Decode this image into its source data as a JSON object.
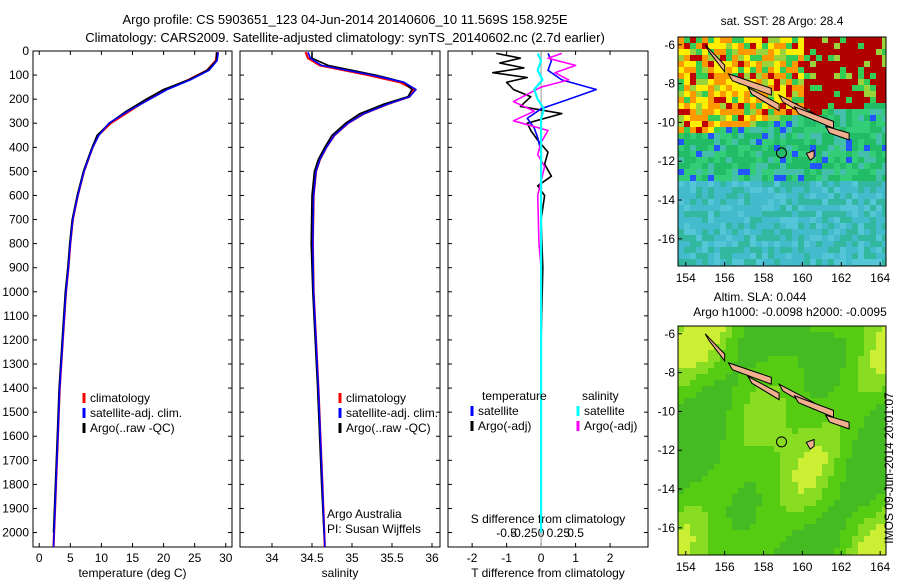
{
  "title_line1": "Argo profile: CS 5903651_123 04-Jun-2014 20140606_10 11.569S 158.925E",
  "title_line2": "Climatology: CARS2009. Satellite-adjusted climatology: synTS_20140602.nc (2.7d earlier)",
  "colors": {
    "clim": "#ff0000",
    "sat": "#0000ff",
    "argo": "#000000",
    "sal_sat": "#00ffff",
    "sal_argo": "#ff00ff"
  },
  "depth_axis": {
    "ticks": [
      0,
      100,
      200,
      300,
      400,
      500,
      600,
      700,
      800,
      900,
      1000,
      1100,
      1200,
      1300,
      1400,
      1500,
      1600,
      1700,
      1800,
      1900,
      2000
    ],
    "labels": [
      "0",
      "100",
      "200",
      "300",
      "400",
      "500",
      "600",
      "700",
      "800",
      "900",
      "1000",
      "1100",
      "1200",
      "1300",
      "1400",
      "1500",
      "1600",
      "1700",
      "1800",
      "1900",
      "2000"
    ],
    "range": [
      0,
      2060
    ]
  },
  "chart_data": [
    {
      "type": "line",
      "name": "temperature",
      "xlabel": "temperature (deg C)",
      "xlim": [
        -1,
        31
      ],
      "xticks": [
        0,
        5,
        10,
        15,
        20,
        25,
        30
      ],
      "xtick_labels": [
        "0",
        "5",
        "10",
        "15",
        "20",
        "25",
        "30"
      ],
      "legend": [
        "climatology",
        "satellite-adj. clim.",
        "Argo(..raw -QC)"
      ],
      "series": [
        {
          "name": "climatology",
          "depth": [
            5,
            40,
            80,
            120,
            160,
            200,
            250,
            300,
            350,
            400,
            450,
            500,
            600,
            700,
            800,
            900,
            1000,
            1200,
            1400,
            1600,
            1800,
            2000,
            2060
          ],
          "values": [
            28.6,
            28.4,
            27.0,
            24.0,
            20.4,
            17.5,
            14.5,
            11.5,
            9.5,
            8.6,
            7.9,
            7.2,
            6.2,
            5.4,
            5.0,
            4.7,
            4.3,
            3.8,
            3.3,
            3.0,
            2.7,
            2.4,
            2.3
          ]
        },
        {
          "name": "satellite-adj. clim.",
          "depth": [
            5,
            40,
            80,
            120,
            160,
            200,
            250,
            300,
            350,
            400,
            450,
            500,
            600,
            700,
            800,
            900,
            1000,
            1200,
            1400,
            1600,
            1800,
            2000,
            2060
          ],
          "values": [
            28.8,
            28.6,
            27.3,
            24.3,
            20.6,
            17.8,
            14.3,
            11.2,
            9.6,
            8.6,
            7.9,
            7.2,
            6.2,
            5.4,
            5.0,
            4.7,
            4.3,
            3.8,
            3.3,
            3.0,
            2.7,
            2.4,
            2.3
          ]
        },
        {
          "name": "Argo(..raw -QC)",
          "depth": [
            5,
            40,
            80,
            120,
            160,
            200,
            250,
            300,
            350,
            400,
            450,
            500,
            600,
            700,
            800,
            900,
            1000,
            1200,
            1400,
            1600,
            1800,
            2000
          ],
          "values": [
            28.5,
            28.5,
            27.0,
            24.0,
            20.0,
            17.2,
            14.0,
            11.3,
            9.3,
            8.5,
            7.8,
            7.1,
            6.1,
            5.3,
            4.9,
            4.6,
            4.2,
            3.7,
            3.2,
            2.9,
            2.6,
            2.3
          ]
        }
      ]
    },
    {
      "type": "line",
      "name": "salinity",
      "xlabel": "salinity",
      "xlim": [
        33.6,
        36.1
      ],
      "xticks": [
        34,
        34.5,
        35,
        35.5,
        36
      ],
      "xtick_labels": [
        "34",
        "34.5",
        "35",
        "35.5",
        "36"
      ],
      "legend": [
        "climatology",
        "satellite-adj. clim.",
        "Argo(..raw -QC)"
      ],
      "annotation": [
        "Argo Australia",
        "PI: Susan Wijffels"
      ],
      "series": [
        {
          "name": "climatology",
          "depth": [
            5,
            30,
            60,
            100,
            130,
            160,
            190,
            220,
            260,
            300,
            350,
            400,
            450,
            500,
            600,
            800,
            1000,
            1400,
            1800,
            2060
          ],
          "values": [
            34.42,
            34.45,
            34.6,
            35.2,
            35.6,
            35.78,
            35.72,
            35.45,
            35.15,
            34.95,
            34.78,
            34.68,
            34.6,
            34.55,
            34.52,
            34.51,
            34.52,
            34.58,
            34.63,
            34.66
          ]
        },
        {
          "name": "satellite-adj. clim.",
          "depth": [
            5,
            30,
            60,
            100,
            130,
            160,
            190,
            220,
            260,
            300,
            350,
            400,
            450,
            500,
            600,
            800,
            1000,
            1400,
            1800,
            2060
          ],
          "values": [
            34.45,
            34.48,
            34.62,
            35.25,
            35.65,
            35.8,
            35.72,
            35.45,
            35.15,
            34.95,
            34.78,
            34.68,
            34.6,
            34.55,
            34.52,
            34.51,
            34.52,
            34.58,
            34.63,
            34.66
          ]
        },
        {
          "name": "Argo(..raw -QC)",
          "depth": [
            5,
            30,
            60,
            100,
            130,
            160,
            190,
            220,
            260,
            300,
            350,
            400,
            450,
            500,
            600,
            800,
            1000,
            1400,
            1800,
            2000
          ],
          "values": [
            34.5,
            34.5,
            34.7,
            35.3,
            35.65,
            35.75,
            35.7,
            35.4,
            35.1,
            34.92,
            34.75,
            34.66,
            34.58,
            34.53,
            34.5,
            34.49,
            34.51,
            34.57,
            34.62,
            34.65
          ]
        }
      ]
    },
    {
      "type": "line",
      "name": "differences",
      "xlabel": "T difference from climatology",
      "xlabel_top": "S difference from climatology",
      "xlim": [
        -2.7,
        3.1
      ],
      "xticks": [
        -2,
        -1,
        0,
        1,
        2
      ],
      "xtick_labels": [
        "-2",
        "-1",
        "0",
        "1",
        "2"
      ],
      "sticks": [
        -0.5,
        -0.25,
        0,
        0.25,
        0.5
      ],
      "stick_labels": [
        "-0.5",
        "-0.25",
        "0",
        "0.25",
        "0.5"
      ],
      "legend_left_title": "temperature",
      "legend_right_title": "salinity",
      "legend_left": [
        "satellite",
        "Argo(-adj)"
      ],
      "legend_right": [
        "satellite",
        "Argo(-adj)"
      ],
      "series": [
        {
          "name": "T satellite",
          "depth": [
            10,
            40,
            80,
            120,
            160,
            200,
            240,
            280,
            320,
            360,
            420,
            500,
            600,
            800,
            1000,
            1400,
            2000
          ],
          "values": [
            0.2,
            0.3,
            0.2,
            0.6,
            1.6,
            0.8,
            0.0,
            -0.4,
            -0.2,
            -0.1,
            0.0,
            0.0,
            0.0,
            0.0,
            0.0,
            0.0,
            0.0
          ]
        },
        {
          "name": "T Argo(-adj)",
          "depth": [
            10,
            30,
            50,
            70,
            90,
            110,
            130,
            160,
            190,
            230,
            260,
            300,
            330,
            370,
            420,
            470,
            520,
            560,
            600,
            700,
            900,
            1200,
            1600,
            2000
          ],
          "values": [
            -1.3,
            -0.6,
            -1.2,
            -0.5,
            -1.4,
            -0.4,
            -1.0,
            -0.8,
            -0.3,
            -0.6,
            0.6,
            -0.4,
            -0.3,
            -0.1,
            0.2,
            0.1,
            0.3,
            -0.1,
            0.1,
            0.0,
            0.05,
            0.0,
            0.0,
            0.0
          ]
        },
        {
          "name": "S satellite",
          "depth": [
            10,
            40,
            80,
            120,
            160,
            200,
            240,
            280,
            330,
            400,
            500,
            700,
            1000,
            1400,
            2000
          ],
          "values": [
            -0.05,
            0.0,
            -0.05,
            0.02,
            -0.1,
            -0.05,
            0.04,
            0.0,
            0.0,
            0.0,
            0.0,
            0.0,
            0.0,
            0.0,
            0.0
          ]
        },
        {
          "name": "S Argo(-adj)",
          "depth": [
            10,
            30,
            60,
            90,
            120,
            150,
            180,
            210,
            250,
            290,
            330,
            380,
            430,
            480,
            600,
            800,
            900,
            1200,
            1600,
            2000
          ],
          "values": [
            0.3,
            0.1,
            0.5,
            0.2,
            0.4,
            0.0,
            -0.2,
            -0.4,
            -0.1,
            -0.4,
            0.1,
            0.0,
            -0.05,
            0.05,
            -0.05,
            -0.03,
            0.0,
            0.0,
            0.0,
            0.0
          ]
        }
      ]
    },
    {
      "type": "heatmap",
      "name": "sst_map",
      "title": "sat. SST: 28 Argo: 28.4",
      "xticks": [
        154,
        156,
        158,
        160,
        162,
        164
      ],
      "xtick_labels": [
        "154",
        "156",
        "158",
        "160",
        "162",
        "164"
      ],
      "yticks": [
        -6,
        -8,
        -10,
        -12,
        -14,
        -16
      ],
      "ytick_labels": [
        "-6",
        "-8",
        "-10",
        "-12",
        "-14",
        "-16"
      ],
      "marker": {
        "lon": 158.925,
        "lat": -11.569
      }
    },
    {
      "type": "heatmap",
      "name": "sla_map",
      "title1": "Altim. SLA: 0.044",
      "title2": "Argo h1000: -0.0098 h2000: -0.0095",
      "xticks": [
        154,
        156,
        158,
        160,
        162,
        164
      ],
      "xtick_labels": [
        "154",
        "156",
        "158",
        "160",
        "162",
        "164"
      ],
      "yticks": [
        -6,
        -8,
        -10,
        -12,
        -14,
        -16
      ],
      "ytick_labels": [
        "-6",
        "-8",
        "-10",
        "-12",
        "-14",
        "-16"
      ],
      "marker": {
        "lon": 158.925,
        "lat": -11.569
      }
    }
  ],
  "side_stamp": "IMOS 09-Jun-2014 20:01:07"
}
